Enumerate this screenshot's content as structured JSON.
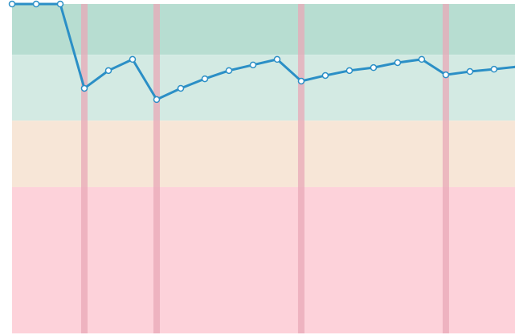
{
  "chart_data": {
    "type": "line",
    "x": [
      0,
      1,
      2,
      3,
      4,
      5,
      6,
      7,
      8,
      9,
      10,
      11,
      12,
      13,
      14,
      15,
      16,
      17,
      18,
      19,
      20,
      21
    ],
    "series": [
      {
        "color": "#2b8fc6",
        "values": [
          100,
          100,
          100,
          74.4,
          79.8,
          83.2,
          71.0,
          74.4,
          77.3,
          79.8,
          81.5,
          83.2,
          76.6,
          78.3,
          79.8,
          80.7,
          82.2,
          83.2,
          78.5,
          79.5,
          80.2,
          81.0
        ]
      }
    ],
    "xlim": [
      0,
      20.87
    ],
    "ylim": [
      0,
      100
    ],
    "bands": [
      {
        "from": 84.6,
        "to": 100,
        "color": "#b7ddd1"
      },
      {
        "from": 64.6,
        "to": 84.6,
        "color": "#d3eae3"
      },
      {
        "from": 44.4,
        "to": 64.6,
        "color": "#f7e6d7"
      },
      {
        "from": 0,
        "to": 44.4,
        "color": "#fdd2da"
      }
    ],
    "vlines": [
      3,
      6,
      12,
      18
    ],
    "vline_color": "#e9a9b8"
  }
}
